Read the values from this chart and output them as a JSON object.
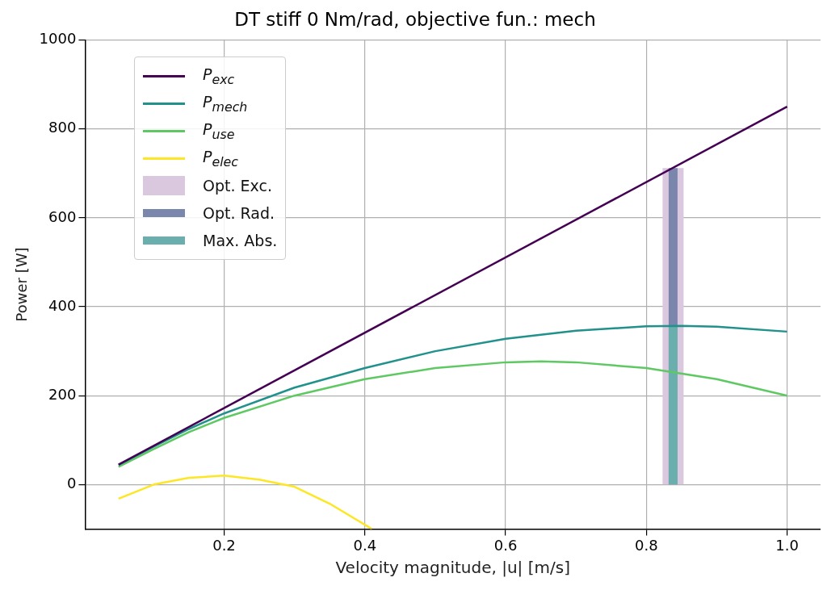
{
  "chart_data": {
    "type": "line",
    "title": "DT stiff 0 Nm/rad, objective fun.: mech",
    "xlabel": "Velocity magnitude, |u| [m/s]",
    "ylabel": "Power [W]",
    "xlim": [
      0.0025,
      1.0475
    ],
    "ylim": [
      -100,
      1000
    ],
    "xticks": [
      0.2,
      0.4,
      0.6,
      0.8,
      {
        "value": 1,
        "label": "1.0"
      }
    ],
    "yticks": [
      0,
      200,
      400,
      600,
      800,
      1000
    ],
    "grid": true,
    "legend": "top left",
    "line_style": "solid",
    "series": [
      {
        "name": "P$_{exc}$",
        "color": "#440154",
        "x": [
          0.05,
          1.0
        ],
        "values": [
          45,
          850
        ]
      },
      {
        "name": "P$_{mech}$",
        "color": "#21918c",
        "x": [
          0.05,
          0.1,
          0.15,
          0.2,
          0.3,
          0.4,
          0.5,
          0.6,
          0.7,
          0.8,
          0.85,
          0.9,
          1.0
        ],
        "values": [
          44,
          85,
          125,
          160,
          218,
          262,
          300,
          328,
          346,
          356,
          357,
          355,
          344
        ]
      },
      {
        "name": "P$_{use}$",
        "color": "#5ec962",
        "x": [
          0.05,
          0.1,
          0.15,
          0.2,
          0.3,
          0.4,
          0.5,
          0.6,
          0.65,
          0.7,
          0.8,
          0.9,
          1.0
        ],
        "values": [
          40,
          80,
          118,
          150,
          200,
          237,
          262,
          275,
          277,
          275,
          262,
          237,
          200
        ]
      },
      {
        "name": "P$_{elec}$",
        "color": "#fde725",
        "x": [
          0.05,
          0.1,
          0.15,
          0.2,
          0.25,
          0.3,
          0.35,
          0.41
        ],
        "values": [
          -32,
          0,
          15,
          20,
          11,
          -5,
          -43,
          -100
        ]
      },
      {
        "name": "Opt. Exc.",
        "color": "#d9c8de",
        "x": [
          0.838,
          0.838
        ],
        "values": [
          0,
          712
        ]
      },
      {
        "name": "Opt. Rad.",
        "color": "#7b86ac",
        "x": [
          0.838,
          0.838
        ],
        "values": [
          0,
          712
        ]
      },
      {
        "name": "Max. Abs.",
        "color": "#6aafae",
        "x": [
          0.838,
          0.838
        ],
        "values": [
          0,
          355
        ]
      }
    ]
  }
}
